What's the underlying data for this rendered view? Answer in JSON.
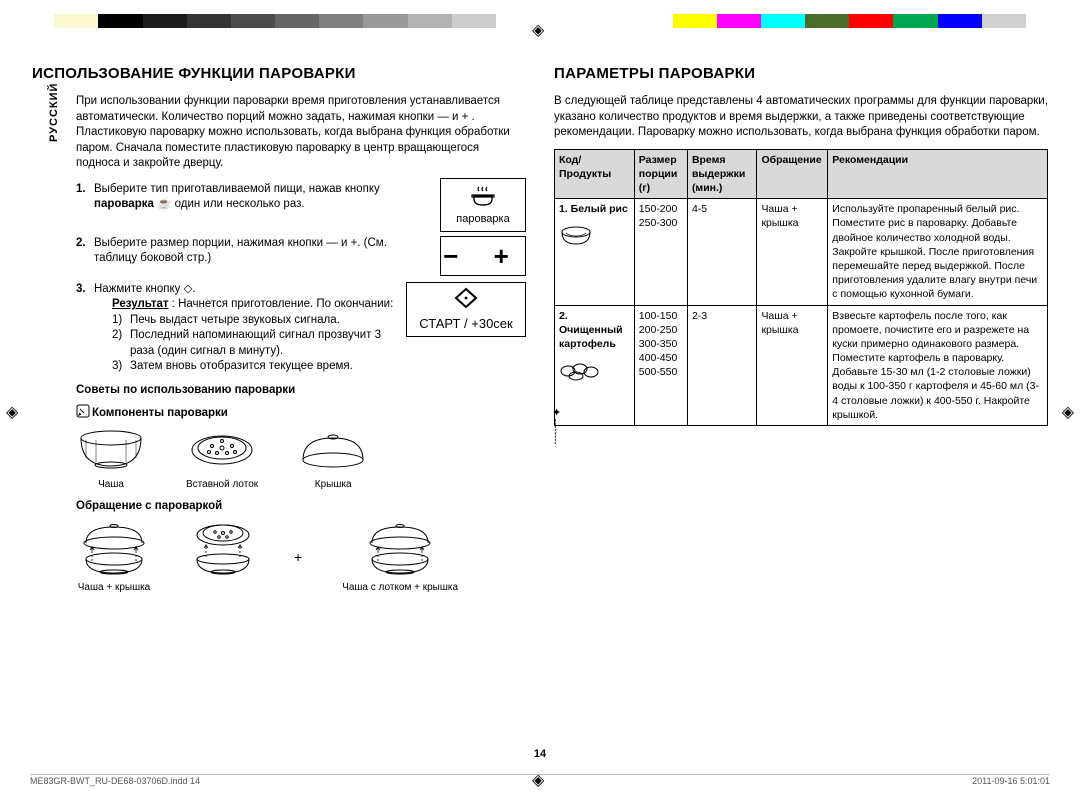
{
  "colorbar": [
    "#ffffff",
    "#fafad0",
    "#000000",
    "#1a1a1a",
    "#333333",
    "#4d4d4d",
    "#666666",
    "#808080",
    "#999999",
    "#b3b3b3",
    "#cccccc",
    "#ffffff",
    "#ffffff",
    "#ffffff",
    "#ffffff",
    "#ffff00",
    "#ff00ff",
    "#00ffff",
    "#4a6b2a",
    "#ff0000",
    "#00a651",
    "#0000ff",
    "#d0d0d0",
    "#ffffff"
  ],
  "lang_tab": "РУССКИЙ",
  "left": {
    "heading": "ИСПОЛЬЗОВАНИЕ ФУНКЦИИ ПАРОВАРКИ",
    "intro": "При использовании функции пароварки время приготовления устанавливается автоматически. Количество порций можно задать, нажимая кнопки — и + . Пластиковую пароварку можно использовать, когда выбрана функция обработки паром. Сначала поместите пластиковую пароварку в центр вращающегося подноса и закройте дверцу.",
    "step1_pre": "Выберите тип приготавливаемой пищи, нажав кнопку ",
    "step1_bold": "пароварка",
    "step1_post": " ☕ один или несколько раз.",
    "box_cook_label": "пароварка",
    "step2": "Выберите размер порции, нажимая кнопки — и +. (См. таблицу боковой стр.)",
    "box_plusminus_minus": "−",
    "box_plusminus_plus": "+",
    "step3": "Нажмите кнопку ◇.",
    "result_label": "Результат",
    "result_text": " : Начнется приготовление. По окончании:",
    "box_start_line2": "СТАРТ / +30сек",
    "sub1": "Печь выдаст четыре звуковых сигнала.",
    "sub2": "Последний напоминающий сигнал прозвучит 3 раза (один сигнал в минуту).",
    "sub3": "Затем вновь отобразится текущее время.",
    "tips_title": "Советы по использованию пароварки",
    "components_title": "Компоненты пароварки",
    "comp1": "Чаша",
    "comp2": "Вставной лоток",
    "comp3": "Крышка",
    "handling_title": "Обращение с пароваркой",
    "hand1": "Чаша + крышка",
    "hand2": "Чаша с лотком + крышка"
  },
  "right": {
    "heading": "ПАРАМЕТРЫ ПАРОВАРКИ",
    "intro": "В следующей таблице представлены 4 автоматических программы для функции пароварки, указано количество продуктов и время выдержки, а также приведены соответствующие рекомендации. Пароварку можно использовать, когда выбрана функция обработки паром.",
    "th1": "Код/ Продукты",
    "th2": "Размер порции (г)",
    "th3": "Время выдержки (мин.)",
    "th4": "Обращение",
    "th5": "Рекомендации",
    "rows": [
      {
        "code": "1. Белый рис",
        "portion": "150-200\n250-300",
        "hold": "4-5",
        "handling": "Чаша + крышка",
        "rec": "Используйте пропаренный белый рис. Поместите рис в пароварку. Добавьте двойное количество холодной воды. Закройте крышкой. После приготовления перемешайте перед выдержкой. После приготовления удалите влагу внутри печи с помощью кухонной бумаги."
      },
      {
        "code": "2. Очищенный картофель",
        "portion": "100-150\n200-250\n300-350\n400-450\n500-550",
        "hold": "2-3",
        "handling": "Чаша + крышка",
        "rec": "Взвесьте картофель после того, как промоете, почистите его и разрежете на куски примерно одинакового размера. Поместите картофель в пароварку. Добавьте 15-30 мл (1-2 столовые ложки) воды к 100-350 г картофеля и 45-60 мл (3-4 столовые ложки) к 400-550 г. Накройте крышкой."
      }
    ]
  },
  "page_number": "14",
  "footer_left": "ME83GR-BWT_RU-DE68-03706D.indd   14",
  "footer_right": "2011-09-16   5:01:01"
}
